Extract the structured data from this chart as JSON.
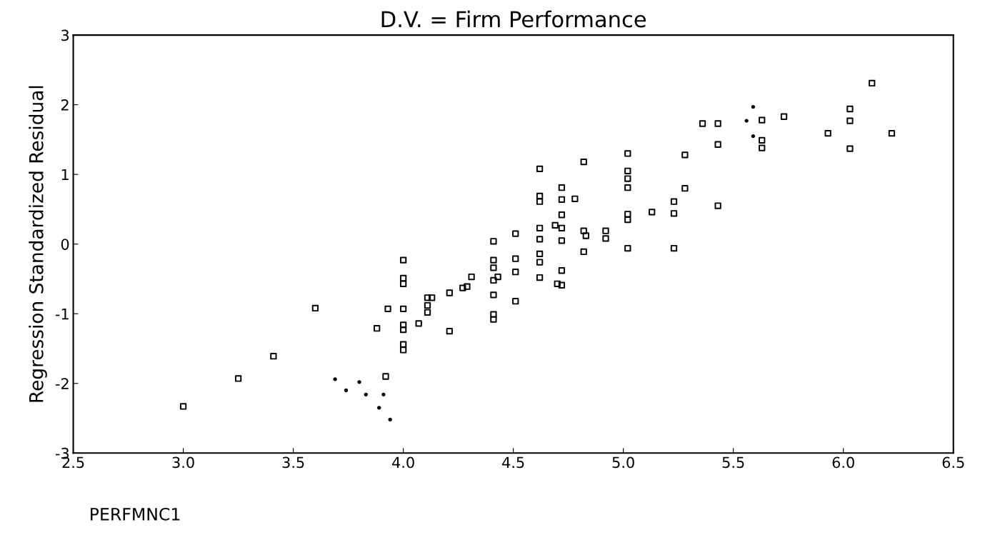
{
  "chart_data": {
    "type": "scatter",
    "title": "D.V. = Firm Performance",
    "xlabel": "PERFMNC1",
    "ylabel": "Regression Standardized Residual",
    "xlim": [
      2.5,
      6.5
    ],
    "ylim": [
      -3,
      3
    ],
    "xticks": [
      2.5,
      {
        "value": 3,
        "label": "3.0"
      },
      3.5,
      {
        "value": 4,
        "label": "4.0"
      },
      4.5,
      {
        "value": 5,
        "label": "5.0"
      },
      5.5,
      {
        "value": 6,
        "label": "6.0"
      },
      6.5
    ],
    "yticks": [
      -3,
      -2,
      -1,
      0,
      1,
      2,
      3
    ],
    "grid": false,
    "legend": false,
    "series": [
      {
        "color": "#000000",
        "marker": "square",
        "x": [
          3.0,
          3.25,
          3.41,
          3.6,
          3.92,
          3.88,
          3.93,
          4.0,
          4.0,
          4.0,
          4.0,
          4.0,
          4.0,
          4.0,
          4.0,
          4.07,
          4.11,
          4.13,
          4.11,
          4.11,
          4.21,
          4.21,
          4.27,
          4.29,
          4.31,
          4.41,
          4.41,
          4.41,
          4.41,
          4.43,
          4.41,
          4.41,
          4.41,
          4.51,
          4.51,
          4.51,
          4.51,
          4.62,
          4.62,
          4.62,
          4.62,
          4.62,
          4.62,
          4.62,
          4.62,
          4.72,
          4.72,
          4.78,
          4.72,
          4.69,
          4.72,
          4.72,
          4.72,
          4.7,
          4.72,
          4.82,
          4.82,
          4.83,
          4.82,
          4.92,
          4.92,
          5.02,
          5.02,
          5.02,
          5.02,
          5.02,
          5.02,
          5.02,
          5.13,
          5.23,
          5.23,
          5.23,
          5.28,
          5.28,
          5.36,
          5.43,
          5.43,
          5.43,
          5.63,
          5.63,
          5.63,
          5.73,
          5.93,
          6.03,
          6.03,
          6.03,
          6.13,
          6.22
        ],
        "values": [
          -2.33,
          -1.93,
          -1.61,
          -0.92,
          -1.9,
          -1.21,
          -0.93,
          -0.23,
          -0.49,
          -0.57,
          -0.93,
          -1.16,
          -1.23,
          -1.44,
          -1.52,
          -1.14,
          -0.77,
          -0.77,
          -0.88,
          -0.98,
          -0.7,
          -1.25,
          -0.63,
          -0.61,
          -0.47,
          0.04,
          -0.23,
          -0.34,
          -0.52,
          -0.47,
          -0.73,
          -1.01,
          -1.08,
          0.15,
          -0.21,
          -0.4,
          -0.82,
          1.08,
          0.69,
          0.61,
          0.23,
          0.07,
          -0.14,
          -0.26,
          -0.48,
          0.81,
          0.64,
          0.65,
          0.42,
          0.27,
          0.23,
          0.05,
          -0.38,
          -0.57,
          -0.59,
          1.18,
          0.19,
          0.12,
          -0.11,
          0.19,
          0.08,
          1.3,
          1.05,
          0.94,
          0.81,
          0.43,
          0.35,
          -0.06,
          0.46,
          0.61,
          0.44,
          -0.06,
          1.28,
          0.8,
          1.73,
          1.73,
          1.43,
          0.55,
          1.78,
          1.49,
          1.38,
          1.83,
          1.59,
          1.94,
          1.77,
          1.37,
          2.31,
          1.59
        ]
      },
      {
        "color": "#000000",
        "marker": "circle",
        "x": [
          3.69,
          3.74,
          3.8,
          3.83,
          3.91,
          3.89,
          3.94,
          5.56,
          5.59,
          5.59
        ],
        "values": [
          -1.94,
          -2.1,
          -1.98,
          -2.16,
          -2.16,
          -2.35,
          -2.52,
          1.77,
          1.97,
          1.55
        ]
      }
    ]
  }
}
